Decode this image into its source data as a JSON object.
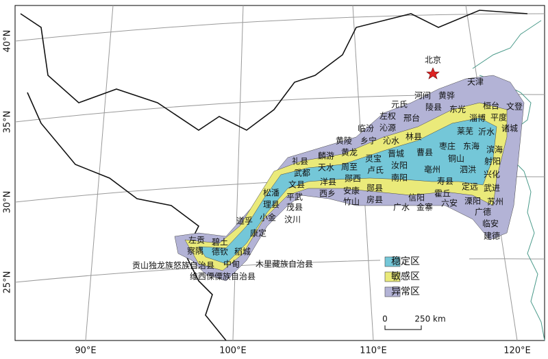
{
  "map": {
    "capital": "北京",
    "labels": [
      "天津",
      "河间",
      "黄骅",
      "元氏",
      "陵县",
      "东光",
      "桓台",
      "文登",
      "左权",
      "邢台",
      "淄博",
      "平度",
      "临汾",
      "沁源",
      "莱芜",
      "沂水",
      "诸城",
      "乡宁",
      "沁水",
      "林县",
      "黄陵",
      "黄龙",
      "晋城",
      "曹县",
      "枣庄",
      "东海",
      "滨海",
      "麟游",
      "灵宝",
      "铜山",
      "射阳",
      "礼县",
      "武都",
      "天水",
      "周至",
      "卢氏",
      "汝阳",
      "亳州",
      "泗洪",
      "兴化",
      "文县",
      "洋县",
      "郧西",
      "南阳",
      "寿县",
      "定远",
      "武进",
      "松潘",
      "西乡",
      "安康",
      "郧县",
      "竹山",
      "房县",
      "信阳",
      "霍丘",
      "平武",
      "理县",
      "茂县",
      "溧阳",
      "苏州",
      "广水",
      "金寨",
      "六安",
      "小金",
      "汶川",
      "广德",
      "道孚",
      "康定",
      "临安",
      "建德",
      "左贡",
      "碧土",
      "察隅",
      "德钦",
      "稻城",
      "贡山独龙族怒族自治县",
      "中甸",
      "木里藏族自治县",
      "维西傈僳族自治县"
    ],
    "legend": [
      "稳定区",
      "敏感区",
      "异常区"
    ],
    "scale": [
      "0",
      "250 km"
    ],
    "lon_labels": [
      "90°E",
      "100°E",
      "110°E",
      "120°E"
    ],
    "lat_labels": [
      "25°N",
      "30°N",
      "35°N",
      "40°N"
    ]
  }
}
